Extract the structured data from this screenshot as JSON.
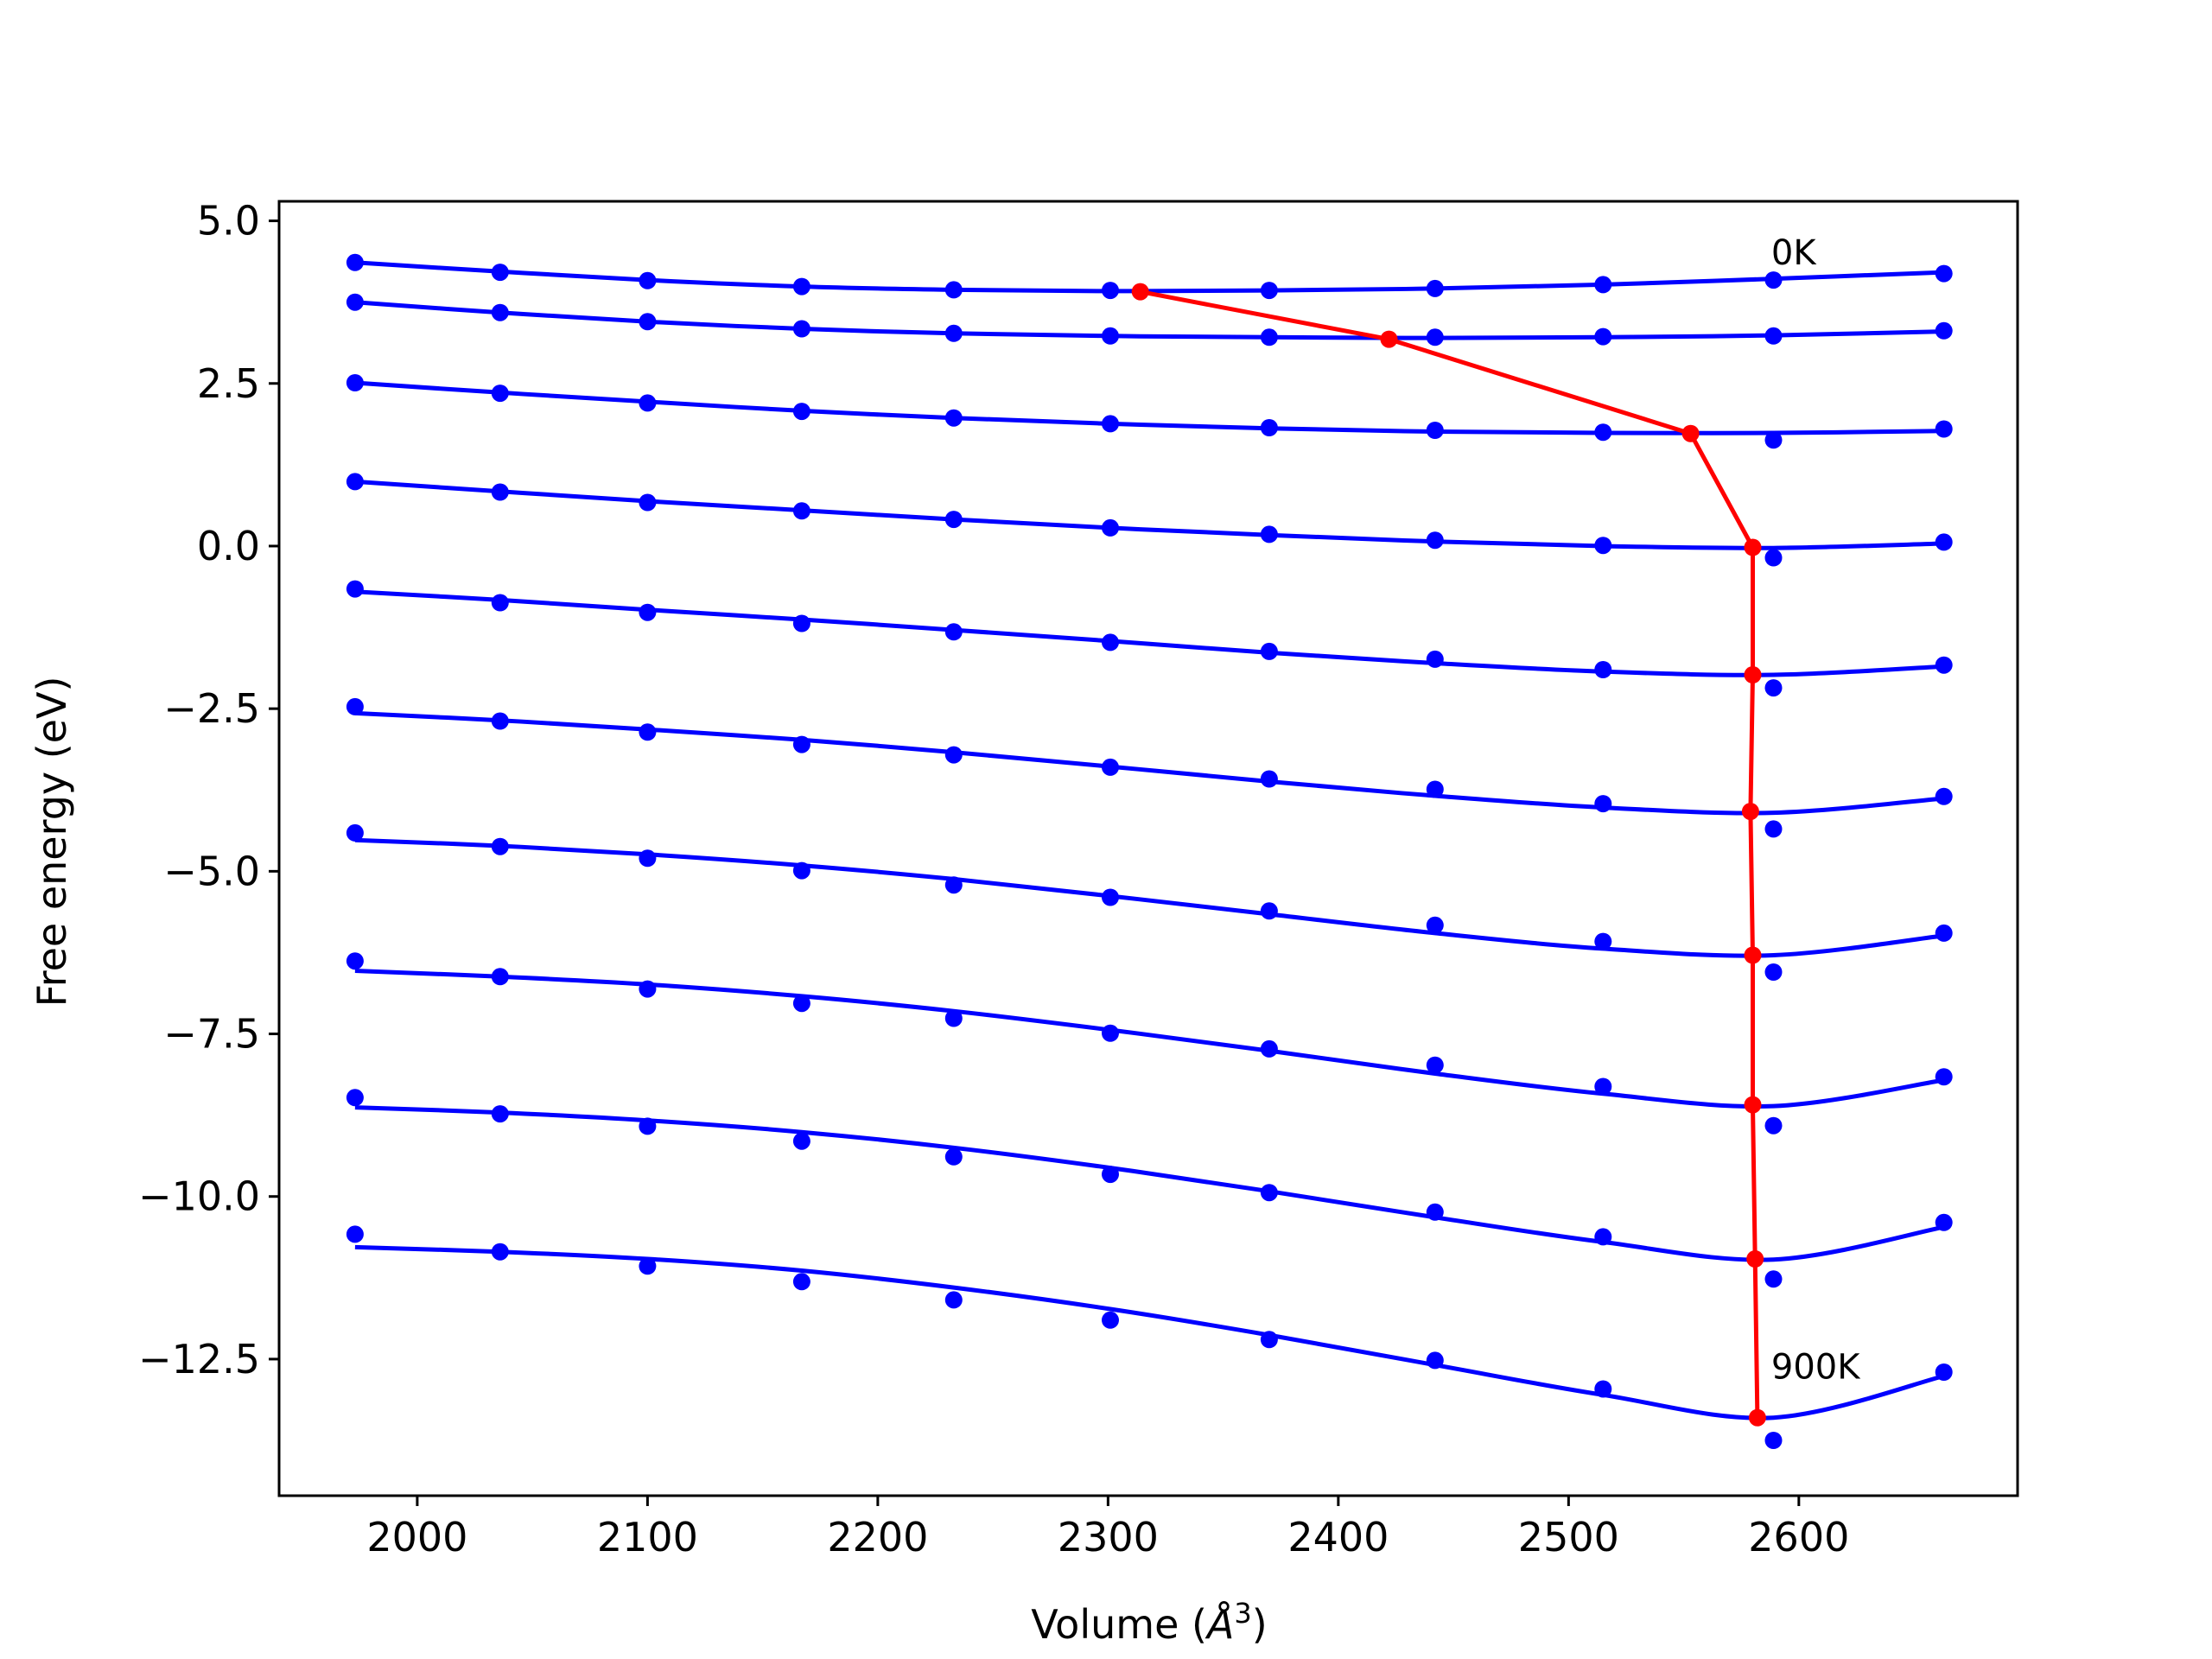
{
  "chart_data": {
    "type": "line",
    "title": "",
    "xlabel": "Volume (",
    "xlabel_symbol": "Å",
    "xlabel_exponent": "3",
    "xlabel_close": ")",
    "ylabel": "Free energy (eV)",
    "xlim": [
      1940,
      2695
    ],
    "ylim": [
      -14.6,
      5.3
    ],
    "xticks": [
      2000,
      2100,
      2200,
      2300,
      2400,
      2500,
      2600
    ],
    "xtick_labels": [
      "2000",
      "2100",
      "2200",
      "2300",
      "2400",
      "2500",
      "2600"
    ],
    "yticks": [
      5.0,
      2.5,
      0.0,
      -2.5,
      -5.0,
      -7.5,
      -10.0,
      -12.5
    ],
    "ytick_labels": [
      "5.0",
      "2.5",
      "0.0",
      "−2.5",
      "−5.0",
      "−7.5",
      "−10.0",
      "−12.5"
    ],
    "grid": false,
    "legend": "none",
    "annotations": [
      {
        "text": "0K",
        "x": 2588,
        "y": 4.33
      },
      {
        "text": "900K",
        "x": 2588,
        "y": -12.8
      }
    ],
    "colors": {
      "fit": "#0000ff",
      "points": "#0000ff",
      "minima": "#ff0000"
    },
    "volumes": [
      1973,
      2036,
      2100,
      2167,
      2233,
      2301,
      2370,
      2442,
      2515,
      2589,
      2663
    ],
    "series": [
      {
        "points": [
          4.36,
          4.21,
          4.08,
          3.99,
          3.94,
          3.93,
          3.93,
          3.96,
          4.02,
          4.09,
          4.19
        ],
        "fit": [
          [
            1973,
            4.36
          ],
          [
            2036,
            4.22
          ],
          [
            2100,
            4.09
          ],
          [
            2167,
            3.99
          ],
          [
            2233,
            3.94
          ],
          [
            2301,
            3.92
          ],
          [
            2370,
            3.93
          ],
          [
            2442,
            3.96
          ],
          [
            2515,
            4.02
          ],
          [
            2589,
            4.11
          ],
          [
            2663,
            4.21
          ]
        ]
      },
      {
        "points": [
          3.75,
          3.59,
          3.45,
          3.34,
          3.27,
          3.23,
          3.21,
          3.21,
          3.22,
          3.23,
          3.31
        ],
        "fit": [
          [
            1973,
            3.75
          ],
          [
            2036,
            3.59
          ],
          [
            2100,
            3.45
          ],
          [
            2167,
            3.34
          ],
          [
            2233,
            3.27
          ],
          [
            2301,
            3.23
          ],
          [
            2370,
            3.21
          ],
          [
            2442,
            3.2
          ],
          [
            2515,
            3.21
          ],
          [
            2589,
            3.24
          ],
          [
            2663,
            3.3
          ]
        ]
      },
      {
        "points": [
          2.51,
          2.35,
          2.2,
          2.07,
          1.97,
          1.88,
          1.82,
          1.78,
          1.75,
          1.63,
          1.8
        ],
        "fit": [
          [
            1973,
            2.51
          ],
          [
            2036,
            2.36
          ],
          [
            2100,
            2.22
          ],
          [
            2167,
            2.08
          ],
          [
            2233,
            1.97
          ],
          [
            2301,
            1.88
          ],
          [
            2370,
            1.81
          ],
          [
            2442,
            1.76
          ],
          [
            2515,
            1.74
          ],
          [
            2589,
            1.74
          ],
          [
            2663,
            1.77
          ]
        ]
      },
      {
        "points": [
          0.99,
          0.83,
          0.67,
          0.54,
          0.41,
          0.28,
          0.18,
          0.09,
          0.01,
          -0.18,
          0.06
        ],
        "fit": [
          [
            1973,
            0.99
          ],
          [
            2036,
            0.84
          ],
          [
            2100,
            0.69
          ],
          [
            2167,
            0.55
          ],
          [
            2233,
            0.41
          ],
          [
            2301,
            0.28
          ],
          [
            2370,
            0.17
          ],
          [
            2442,
            0.07
          ],
          [
            2515,
            0.0
          ],
          [
            2589,
            -0.03
          ],
          [
            2663,
            0.04
          ]
        ]
      },
      {
        "points": [
          -0.66,
          -0.87,
          -1.02,
          -1.19,
          -1.32,
          -1.48,
          -1.62,
          -1.74,
          -1.9,
          -2.18,
          -1.83
        ],
        "fit": [
          [
            1973,
            -0.7
          ],
          [
            2036,
            -0.83
          ],
          [
            2100,
            -0.98
          ],
          [
            2167,
            -1.13
          ],
          [
            2233,
            -1.29
          ],
          [
            2301,
            -1.46
          ],
          [
            2370,
            -1.64
          ],
          [
            2442,
            -1.8
          ],
          [
            2515,
            -1.93
          ],
          [
            2589,
            -1.98
          ],
          [
            2663,
            -1.85
          ]
        ]
      },
      {
        "points": [
          -2.47,
          -2.69,
          -2.86,
          -3.05,
          -3.21,
          -3.4,
          -3.58,
          -3.74,
          -3.96,
          -4.35,
          -3.85
        ],
        "fit": [
          [
            1973,
            -2.57
          ],
          [
            2036,
            -2.68
          ],
          [
            2100,
            -2.82
          ],
          [
            2167,
            -2.98
          ],
          [
            2233,
            -3.17
          ],
          [
            2301,
            -3.39
          ],
          [
            2370,
            -3.62
          ],
          [
            2442,
            -3.84
          ],
          [
            2515,
            -4.02
          ],
          [
            2589,
            -4.1
          ],
          [
            2663,
            -3.88
          ]
        ]
      },
      {
        "points": [
          -4.41,
          -4.62,
          -4.8,
          -4.99,
          -5.21,
          -5.4,
          -5.61,
          -5.83,
          -6.08,
          -6.55,
          -5.95
        ],
        "fit": [
          [
            1973,
            -4.52
          ],
          [
            2036,
            -4.61
          ],
          [
            2100,
            -4.74
          ],
          [
            2167,
            -4.91
          ],
          [
            2233,
            -5.12
          ],
          [
            2301,
            -5.38
          ],
          [
            2370,
            -5.66
          ],
          [
            2442,
            -5.95
          ],
          [
            2515,
            -6.19
          ],
          [
            2589,
            -6.29
          ],
          [
            2663,
            -5.99
          ]
        ]
      },
      {
        "points": [
          -6.38,
          -6.62,
          -6.81,
          -7.03,
          -7.26,
          -7.49,
          -7.73,
          -7.98,
          -8.31,
          -8.91,
          -8.16
        ],
        "fit": [
          [
            1973,
            -6.53
          ],
          [
            2036,
            -6.62
          ],
          [
            2100,
            -6.74
          ],
          [
            2167,
            -6.92
          ],
          [
            2233,
            -7.15
          ],
          [
            2301,
            -7.44
          ],
          [
            2370,
            -7.76
          ],
          [
            2442,
            -8.11
          ],
          [
            2515,
            -8.42
          ],
          [
            2589,
            -8.61
          ],
          [
            2663,
            -8.21
          ]
        ]
      },
      {
        "points": [
          -8.48,
          -8.73,
          -8.92,
          -9.15,
          -9.39,
          -9.66,
          -9.94,
          -10.24,
          -10.62,
          -11.27,
          -10.4
        ],
        "fit": [
          [
            1973,
            -8.63
          ],
          [
            2036,
            -8.71
          ],
          [
            2100,
            -8.83
          ],
          [
            2167,
            -9.01
          ],
          [
            2233,
            -9.25
          ],
          [
            2301,
            -9.56
          ],
          [
            2370,
            -9.92
          ],
          [
            2442,
            -10.32
          ],
          [
            2515,
            -10.7
          ],
          [
            2589,
            -10.97
          ],
          [
            2663,
            -10.47
          ]
        ]
      },
      {
        "points": [
          -10.58,
          -10.85,
          -11.07,
          -11.31,
          -11.59,
          -11.9,
          -12.2,
          -12.52,
          -12.96,
          -13.75,
          -12.7
        ],
        "fit": [
          [
            1973,
            -10.78
          ],
          [
            2036,
            -10.85
          ],
          [
            2100,
            -10.96
          ],
          [
            2167,
            -11.14
          ],
          [
            2233,
            -11.4
          ],
          [
            2301,
            -11.73
          ],
          [
            2370,
            -12.13
          ],
          [
            2442,
            -12.59
          ],
          [
            2515,
            -13.05
          ],
          [
            2589,
            -13.4
          ],
          [
            2663,
            -12.76
          ]
        ]
      }
    ],
    "minima": {
      "x": [
        2314,
        2422,
        2553,
        2580,
        2580,
        2579,
        2580,
        2580,
        2581,
        2582
      ],
      "y": [
        3.91,
        3.18,
        1.73,
        -0.02,
        -1.98,
        -4.08,
        -6.29,
        -8.59,
        -10.96,
        -13.4
      ]
    }
  }
}
